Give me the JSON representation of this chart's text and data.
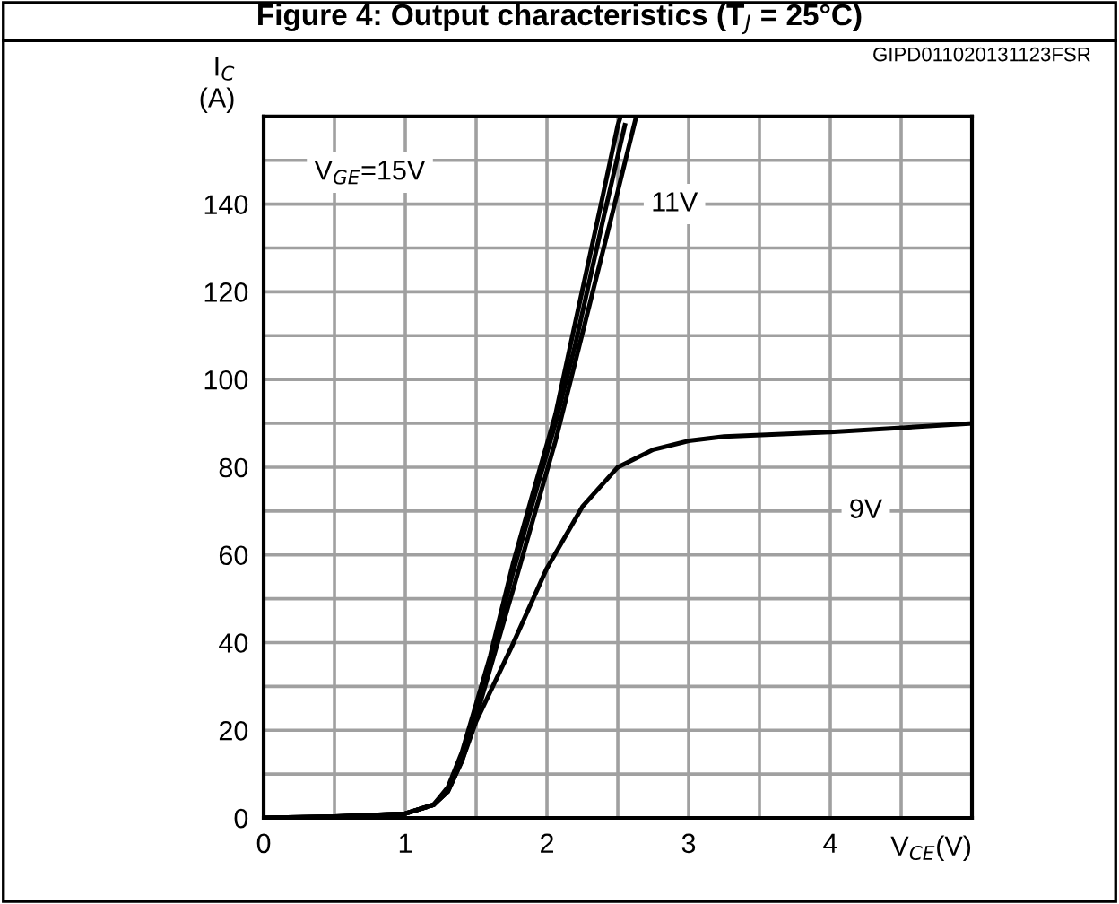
{
  "chart_data": {
    "type": "line",
    "title": "Figure 4: Output characteristics (T$_{J}$ = 25°C)",
    "xlabel": "V$_{CE}$(V)",
    "ylabel": "I$_{C}$\n(A)",
    "annotations": [
      "GIPD011020131123FSR",
      "V$_{GE}$=15V",
      {
        "text": "11V",
        "x": 2.9,
        "y": 140
      },
      {
        "text": "9V",
        "x": 4.25,
        "y": 70
      }
    ],
    "series": [
      {
        "color": "#000000",
        "x": [
          0,
          0.5,
          1.0,
          1.2,
          1.3,
          1.4,
          1.5,
          1.6,
          1.76,
          1.9,
          2.06,
          2.2,
          2.375,
          2.5,
          2.52
        ],
        "values": [
          0,
          0.3,
          1,
          3,
          7,
          15,
          26,
          37,
          58,
          74,
          92,
          113,
          139,
          158,
          160
        ]
      },
      {
        "color": "#000000",
        "x": [
          0,
          0.5,
          1.0,
          1.2,
          1.3,
          1.4,
          1.5,
          1.6,
          1.76,
          1.9,
          2.06,
          2.2,
          2.4,
          2.55
        ],
        "values": [
          0,
          0.3,
          1,
          3,
          6.5,
          14,
          25,
          36,
          56,
          72,
          90,
          108,
          137,
          158
        ]
      },
      {
        "color": "#000000",
        "x": [
          0,
          0.5,
          1.0,
          1.2,
          1.3,
          1.4,
          1.5,
          1.76,
          2.06,
          2.3,
          2.47,
          2.63
        ],
        "values": [
          0,
          0.3,
          1,
          3,
          6,
          13,
          23,
          52,
          86,
          117,
          139,
          160
        ]
      },
      {
        "color": "#000000",
        "x": [
          0,
          0.5,
          1.0,
          1.2,
          1.3,
          1.4,
          1.5,
          1.75,
          2.0,
          2.25,
          2.5,
          2.75,
          3.0,
          3.25,
          4.0,
          5.0
        ],
        "values": [
          0,
          0.2,
          1,
          3,
          6,
          13,
          22,
          39,
          57,
          71,
          80,
          84,
          86,
          87,
          88,
          90
        ]
      }
    ],
    "xlim": [
      0,
      5
    ],
    "ylim": [
      0,
      160
    ],
    "xticks": [
      0,
      {
        "value": 0.5,
        "label": null
      },
      1,
      {
        "value": 1.5,
        "label": null
      },
      2,
      {
        "value": 2.5,
        "label": null
      },
      3,
      {
        "value": 3.5,
        "label": null
      },
      4,
      {
        "value": 4.5,
        "label": null
      }
    ],
    "yticks": [
      0,
      {
        "value": 10,
        "label": null
      },
      20,
      {
        "value": 30,
        "label": null
      },
      40,
      {
        "value": 50,
        "label": null
      },
      60,
      {
        "value": 70,
        "label": null
      },
      80,
      {
        "value": 90,
        "label": null
      },
      100,
      {
        "value": 110,
        "label": null
      },
      120,
      {
        "value": 130,
        "label": null
      },
      140,
      {
        "value": 150,
        "label": null
      }
    ],
    "grid": true,
    "marker": "none",
    "line_style": "solid",
    "legend": false
  }
}
